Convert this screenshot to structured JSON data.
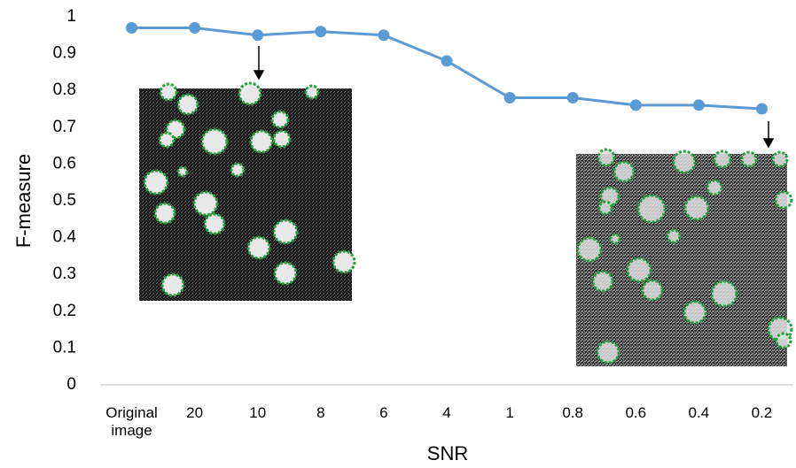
{
  "chart_data": {
    "type": "line",
    "x_label": "SNR",
    "y_label": "F-measure",
    "categories": [
      "Original image",
      "20",
      "10",
      "8",
      "6",
      "4",
      "1",
      "0.8",
      "0.6",
      "0.4",
      "0.2"
    ],
    "series": [
      {
        "name": "F-measure",
        "color": "#5b9bd5",
        "values": [
          0.97,
          0.97,
          0.95,
          0.96,
          0.95,
          0.88,
          0.78,
          0.78,
          0.76,
          0.76,
          0.75
        ]
      }
    ],
    "ylim": [
      0,
      1
    ],
    "yticks": [
      0,
      0.1,
      0.2,
      0.3,
      0.4,
      0.5,
      0.6,
      0.7,
      0.8,
      0.9,
      1
    ],
    "grid": false,
    "legend": false
  }
}
